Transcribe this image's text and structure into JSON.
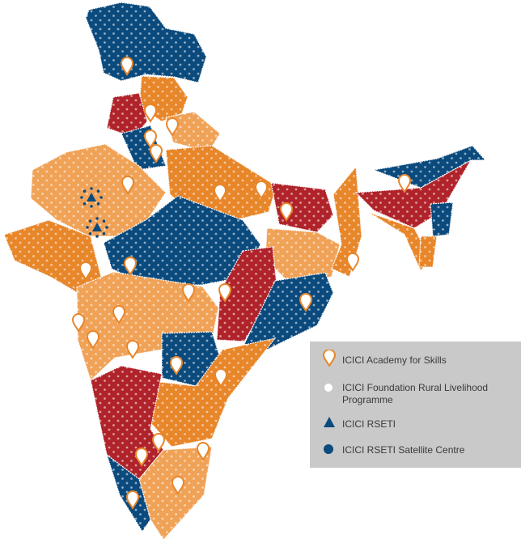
{
  "legend": {
    "items": [
      {
        "label": "ICICI Academy for Skills"
      },
      {
        "label": "ICICI Foundation Rural Livelihood Programme"
      },
      {
        "label": "ICICI RSETI"
      },
      {
        "label": "ICICI RSETI Satellite Centre"
      }
    ]
  }
}
